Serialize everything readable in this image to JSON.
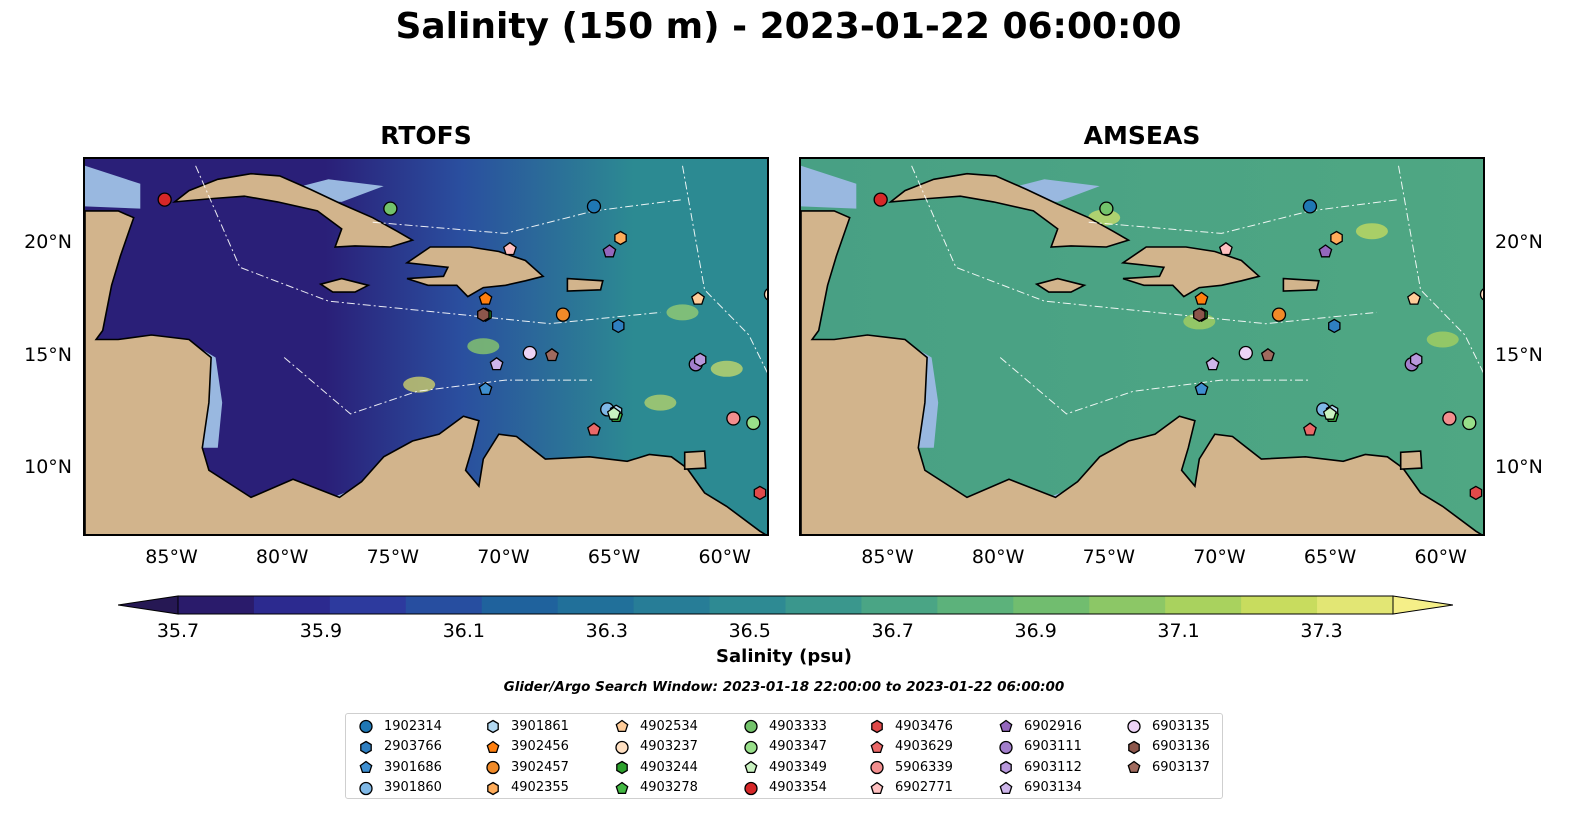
{
  "title": "Salinity (150 m) - 2023-01-22 06:00:00",
  "panels": [
    {
      "title": "RTOFS",
      "model": "rtofs"
    },
    {
      "title": "AMSEAS",
      "model": "amseas"
    }
  ],
  "axes": {
    "lon_ticks": [
      "85°W",
      "80°W",
      "75°W",
      "70°W",
      "65°W",
      "60°W"
    ],
    "lat_ticks": [
      "20°N",
      "15°N",
      "10°N"
    ],
    "lon_range": [
      -89,
      -58
    ],
    "lat_range": [
      7,
      23.8
    ]
  },
  "colorbar": {
    "label": "Salinity (psu)",
    "ticks": [
      "35.7",
      "35.9",
      "36.1",
      "36.3",
      "36.5",
      "36.7",
      "36.9",
      "37.1",
      "37.3"
    ],
    "min": 35.7,
    "max": 37.4,
    "colors": [
      "#2a1b6b",
      "#2c2a8f",
      "#2d3a9e",
      "#274ea0",
      "#1f629d",
      "#21709a",
      "#277d97",
      "#2e8a93",
      "#3a978d",
      "#4aa585",
      "#5cb27b",
      "#71bd6f",
      "#8cc766",
      "#a9d25e",
      "#c8dc5e",
      "#e2e674"
    ],
    "under_color": "#261854",
    "over_color": "#f5ef88"
  },
  "search_window": "Glider/Argo Search Window: 2023-01-18 22:00:00 to 2023-01-22 06:00:00",
  "colors": {
    "land": "#d2b48c",
    "shelf": "#99b8e0",
    "rtofs_west": "#2a1f78",
    "rtofs_mid": "#2a4f9f",
    "rtofs_east": "#2c8a92",
    "amseas": "#48a084"
  },
  "platforms": [
    {
      "id": "1902314",
      "marker": "circle",
      "color": "#1f77b4",
      "lon": -66.0,
      "lat": 21.7
    },
    {
      "id": "2903766",
      "marker": "hexagon",
      "color": "#2f7fc1",
      "lon": -64.9,
      "lat": 16.4
    },
    {
      "id": "3901686",
      "marker": "pentagon",
      "color": "#3f8fd0",
      "lon": -70.9,
      "lat": 13.6
    },
    {
      "id": "3901860",
      "marker": "circle",
      "color": "#7fb8e6",
      "lon": -65.4,
      "lat": 12.7
    },
    {
      "id": "3901861",
      "marker": "hexagon",
      "color": "#b3d9f2",
      "lon": -65.0,
      "lat": 12.6
    },
    {
      "id": "3902456",
      "marker": "pentagon",
      "color": "#ff7f0e",
      "lon": -70.9,
      "lat": 17.6
    },
    {
      "id": "3902457",
      "marker": "circle",
      "color": "#f08a28",
      "lon": -67.4,
      "lat": 16.9
    },
    {
      "id": "4902355",
      "marker": "hexagon",
      "color": "#ffac5a",
      "lon": -64.8,
      "lat": 20.3
    },
    {
      "id": "4902534",
      "marker": "pentagon",
      "color": "#ffcc99",
      "lon": -61.3,
      "lat": 17.6
    },
    {
      "id": "4903237",
      "marker": "circle",
      "color": "#ffe0c2",
      "lon": -58.0,
      "lat": 17.8
    },
    {
      "id": "4903244",
      "marker": "hexagon",
      "color": "#2ca02c",
      "lon": -70.9,
      "lat": 16.9
    },
    {
      "id": "4903278",
      "marker": "pentagon",
      "color": "#43b843",
      "lon": -65.0,
      "lat": 12.4
    },
    {
      "id": "4903333",
      "marker": "circle",
      "color": "#73c36b",
      "lon": -75.2,
      "lat": 21.6
    },
    {
      "id": "4903347",
      "marker": "circle",
      "color": "#98df8a",
      "lon": -58.8,
      "lat": 12.1
    },
    {
      "id": "4903349",
      "marker": "pentagon",
      "color": "#c9f2c0",
      "lon": -65.1,
      "lat": 12.5
    },
    {
      "id": "4903354",
      "marker": "circle",
      "color": "#d62728",
      "lon": -85.4,
      "lat": 22.0
    },
    {
      "id": "4903476",
      "marker": "hexagon",
      "color": "#e04a4a",
      "lon": -58.5,
      "lat": 9.0
    },
    {
      "id": "4903629",
      "marker": "pentagon",
      "color": "#ea6868",
      "lon": -66.0,
      "lat": 11.8
    },
    {
      "id": "5906339",
      "marker": "circle",
      "color": "#f28e8e",
      "lon": -59.7,
      "lat": 12.3
    },
    {
      "id": "6902771",
      "marker": "pentagon",
      "color": "#ffc1c1",
      "lon": -69.8,
      "lat": 19.8
    },
    {
      "id": "6902916",
      "marker": "pentagon",
      "color": "#9467bd",
      "lon": -65.3,
      "lat": 19.7
    },
    {
      "id": "6903111",
      "marker": "circle",
      "color": "#a27ecb",
      "lon": -61.4,
      "lat": 14.7
    },
    {
      "id": "6903112",
      "marker": "hexagon",
      "color": "#b898dc",
      "lon": -61.2,
      "lat": 14.9
    },
    {
      "id": "6903134",
      "marker": "pentagon",
      "color": "#cdb5ea",
      "lon": -70.4,
      "lat": 14.7
    },
    {
      "id": "6903135",
      "marker": "circle",
      "color": "#ecd3f5",
      "lon": -68.9,
      "lat": 15.2
    },
    {
      "id": "6903136",
      "marker": "hexagon",
      "color": "#8c564b",
      "lon": -71.0,
      "lat": 16.9
    },
    {
      "id": "6903137",
      "marker": "pentagon",
      "color": "#a06a5e",
      "lon": -67.9,
      "lat": 15.1
    }
  ]
}
